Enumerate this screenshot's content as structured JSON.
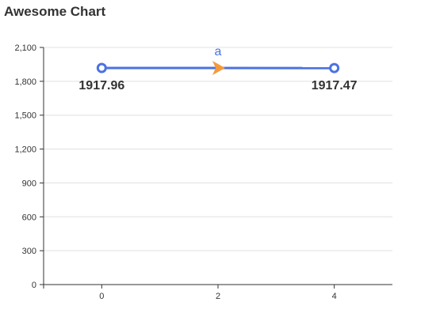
{
  "title": "Awesome Chart",
  "chart_data": {
    "type": "line",
    "title": "Awesome Chart",
    "x": [
      0,
      4
    ],
    "x_ticks": [
      "0",
      "2",
      "4"
    ],
    "y_ticks": [
      "0",
      "300",
      "600",
      "900",
      "1,200",
      "1,500",
      "1,800",
      "2,100"
    ],
    "ylim": [
      0,
      2100
    ],
    "grid": "horizontal",
    "series": [
      {
        "name": "a",
        "values": [
          1917.96,
          1917.47
        ],
        "labels": [
          "1917.96",
          "1917.47"
        ],
        "color": "#4a72e0",
        "arrow_color": "#f59a3c"
      }
    ]
  }
}
